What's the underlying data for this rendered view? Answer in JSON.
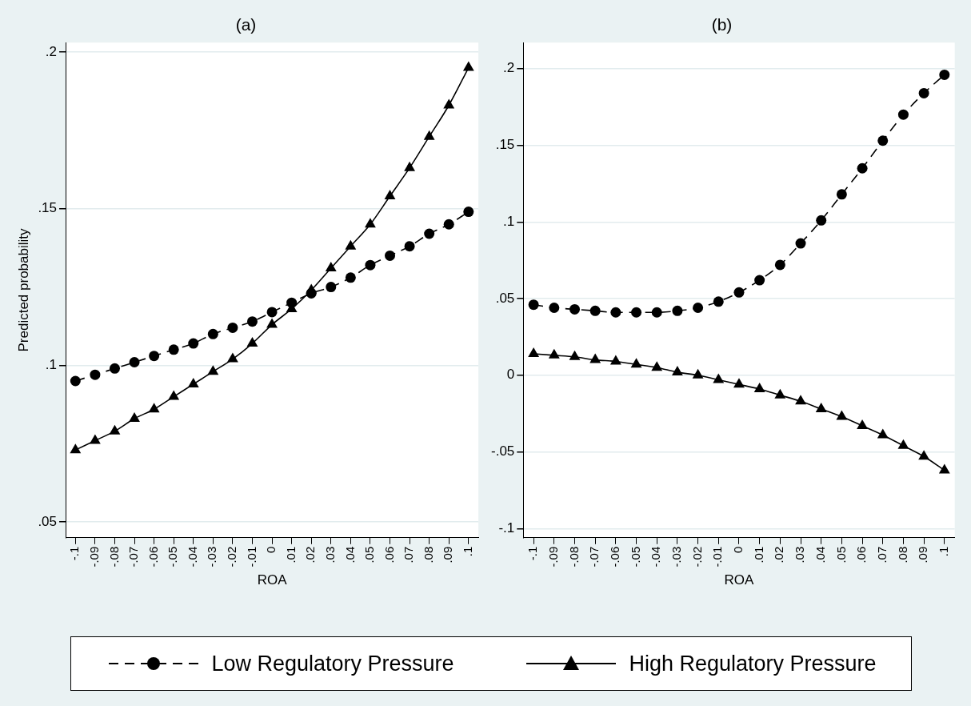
{
  "chart_data": [
    {
      "type": "line",
      "title": "(a)",
      "xlabel": "ROA",
      "ylabel": "Predicted probability",
      "legend": "bottom",
      "grid": "y",
      "x": [
        -0.1,
        -0.09,
        -0.08,
        -0.07,
        -0.06,
        -0.05,
        -0.04,
        -0.03,
        -0.02,
        -0.01,
        0,
        0.01,
        0.02,
        0.03,
        0.04,
        0.05,
        0.06,
        0.07,
        0.08,
        0.09,
        0.1
      ],
      "xlim": [
        -0.105,
        0.105
      ],
      "xticks": [
        {
          "value": -0.1,
          "label": "-.1"
        },
        {
          "value": -0.09,
          "label": "-.09"
        },
        {
          "value": -0.08,
          "label": "-.08"
        },
        {
          "value": -0.07,
          "label": "-.07"
        },
        {
          "value": -0.06,
          "label": "-.06"
        },
        {
          "value": -0.05,
          "label": "-.05"
        },
        {
          "value": -0.04,
          "label": "-.04"
        },
        {
          "value": -0.03,
          "label": "-.03"
        },
        {
          "value": -0.02,
          "label": "-.02"
        },
        {
          "value": -0.01,
          "label": "-.01"
        },
        0,
        {
          "value": 0.01,
          "label": ".01"
        },
        {
          "value": 0.02,
          "label": ".02"
        },
        {
          "value": 0.03,
          "label": ".03"
        },
        {
          "value": 0.04,
          "label": ".04"
        },
        {
          "value": 0.05,
          "label": ".05"
        },
        {
          "value": 0.06,
          "label": ".06"
        },
        {
          "value": 0.07,
          "label": ".07"
        },
        {
          "value": 0.08,
          "label": ".08"
        },
        {
          "value": 0.09,
          "label": ".09"
        },
        {
          "value": 0.1,
          "label": ".1"
        }
      ],
      "ylim": [
        0.045,
        0.203
      ],
      "yticks": [
        {
          "value": 0.05,
          "label": ".05"
        },
        {
          "value": 0.1,
          "label": ".1"
        },
        {
          "value": 0.15,
          "label": ".15"
        },
        {
          "value": 0.2,
          "label": ".2"
        }
      ],
      "series": [
        {
          "name": "Low Regulatory Pressure",
          "color": "#000000",
          "marker": "circle",
          "line_style": "dashed",
          "values": [
            0.095,
            0.097,
            0.099,
            0.101,
            0.103,
            0.105,
            0.107,
            0.11,
            0.112,
            0.114,
            0.117,
            0.12,
            0.123,
            0.125,
            0.128,
            0.132,
            0.135,
            0.138,
            0.142,
            0.145,
            0.149
          ]
        },
        {
          "name": "High Regulatory Pressure",
          "color": "#000000",
          "marker": "triangle",
          "line_style": "solid",
          "values": [
            0.073,
            0.076,
            0.079,
            0.083,
            0.086,
            0.09,
            0.094,
            0.098,
            0.102,
            0.107,
            0.113,
            0.118,
            0.124,
            0.131,
            0.138,
            0.145,
            0.154,
            0.163,
            0.173,
            0.183,
            0.195
          ]
        }
      ]
    },
    {
      "type": "line",
      "title": "(b)",
      "xlabel": "ROA",
      "grid": "y",
      "x": [
        -0.1,
        -0.09,
        -0.08,
        -0.07,
        -0.06,
        -0.05,
        -0.04,
        -0.03,
        -0.02,
        -0.01,
        0,
        0.01,
        0.02,
        0.03,
        0.04,
        0.05,
        0.06,
        0.07,
        0.08,
        0.09,
        0.1
      ],
      "xlim": [
        -0.105,
        0.105
      ],
      "xticks": [
        {
          "value": -0.1,
          "label": "-.1"
        },
        {
          "value": -0.09,
          "label": "-.09"
        },
        {
          "value": -0.08,
          "label": "-.08"
        },
        {
          "value": -0.07,
          "label": "-.07"
        },
        {
          "value": -0.06,
          "label": "-.06"
        },
        {
          "value": -0.05,
          "label": "-.05"
        },
        {
          "value": -0.04,
          "label": "-.04"
        },
        {
          "value": -0.03,
          "label": "-.03"
        },
        {
          "value": -0.02,
          "label": "-.02"
        },
        {
          "value": -0.01,
          "label": "-.01"
        },
        0,
        {
          "value": 0.01,
          "label": ".01"
        },
        {
          "value": 0.02,
          "label": ".02"
        },
        {
          "value": 0.03,
          "label": ".03"
        },
        {
          "value": 0.04,
          "label": ".04"
        },
        {
          "value": 0.05,
          "label": ".05"
        },
        {
          "value": 0.06,
          "label": ".06"
        },
        {
          "value": 0.07,
          "label": ".07"
        },
        {
          "value": 0.08,
          "label": ".08"
        },
        {
          "value": 0.09,
          "label": ".09"
        },
        {
          "value": 0.1,
          "label": ".1"
        }
      ],
      "ylim": [
        -0.106,
        0.217
      ],
      "yticks": [
        {
          "value": -0.1,
          "label": "-.1"
        },
        {
          "value": -0.05,
          "label": "-.05"
        },
        0,
        {
          "value": 0.05,
          "label": ".05"
        },
        {
          "value": 0.1,
          "label": ".1"
        },
        {
          "value": 0.15,
          "label": ".15"
        },
        {
          "value": 0.2,
          "label": ".2"
        }
      ],
      "series": [
        {
          "color": "#000000",
          "marker": "circle",
          "line_style": "dashed",
          "values": [
            0.046,
            0.044,
            0.043,
            0.042,
            0.041,
            0.041,
            0.041,
            0.042,
            0.044,
            0.048,
            0.054,
            0.062,
            0.072,
            0.086,
            0.101,
            0.118,
            0.135,
            0.153,
            0.17,
            0.184,
            0.196
          ]
        },
        {
          "color": "#000000",
          "marker": "triangle",
          "line_style": "solid",
          "values": [
            0.014,
            0.013,
            0.012,
            0.01,
            0.009,
            0.007,
            0.005,
            0.002,
            0.0,
            -0.003,
            -0.006,
            -0.009,
            -0.013,
            -0.017,
            -0.022,
            -0.027,
            -0.033,
            -0.039,
            -0.046,
            -0.053,
            -0.062
          ]
        }
      ]
    }
  ]
}
